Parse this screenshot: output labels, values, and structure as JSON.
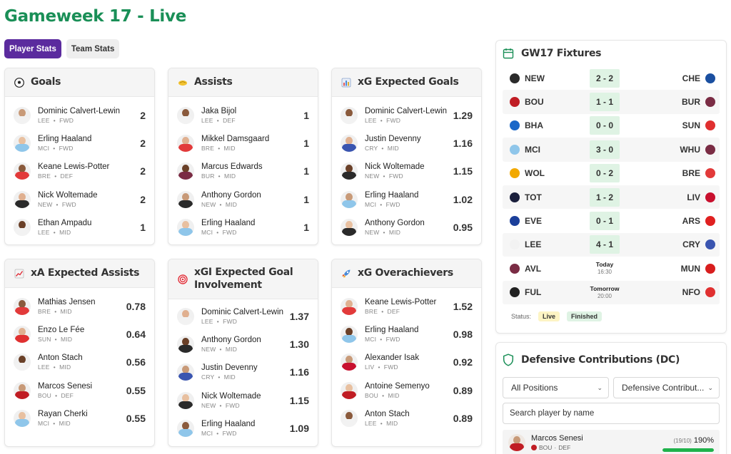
{
  "page": {
    "title": "Gameweek 17 - Live"
  },
  "tabs": [
    {
      "label": "Player Stats",
      "active": true
    },
    {
      "label": "Team Stats",
      "active": false
    }
  ],
  "cards": {
    "goals": {
      "title": "Goals",
      "icon": "soccer-ball-icon",
      "rows": [
        {
          "name": "Dominic Calvert-Lewin",
          "team": "LEE",
          "pos": "FWD",
          "value": "2"
        },
        {
          "name": "Erling Haaland",
          "team": "MCI",
          "pos": "FWD",
          "value": "2"
        },
        {
          "name": "Keane Lewis-Potter",
          "team": "BRE",
          "pos": "DEF",
          "value": "2"
        },
        {
          "name": "Nick Woltemade",
          "team": "NEW",
          "pos": "FWD",
          "value": "2"
        },
        {
          "name": "Ethan Ampadu",
          "team": "LEE",
          "pos": "MID",
          "value": "1"
        }
      ]
    },
    "assists": {
      "title": "Assists",
      "icon": "handshake-icon",
      "rows": [
        {
          "name": "Jaka Bijol",
          "team": "LEE",
          "pos": "DEF",
          "value": "1"
        },
        {
          "name": "Mikkel Damsgaard",
          "team": "BRE",
          "pos": "MID",
          "value": "1"
        },
        {
          "name": "Marcus Edwards",
          "team": "BUR",
          "pos": "MID",
          "value": "1"
        },
        {
          "name": "Anthony Gordon",
          "team": "NEW",
          "pos": "MID",
          "value": "1"
        },
        {
          "name": "Erling Haaland",
          "team": "MCI",
          "pos": "FWD",
          "value": "1"
        }
      ]
    },
    "xg": {
      "title": "xG Expected Goals",
      "icon": "bar-chart-icon",
      "rows": [
        {
          "name": "Dominic Calvert-Lewin",
          "team": "LEE",
          "pos": "FWD",
          "value": "1.29"
        },
        {
          "name": "Justin Devenny",
          "team": "CRY",
          "pos": "MID",
          "value": "1.16"
        },
        {
          "name": "Nick Woltemade",
          "team": "NEW",
          "pos": "FWD",
          "value": "1.15"
        },
        {
          "name": "Erling Haaland",
          "team": "MCI",
          "pos": "FWD",
          "value": "1.02"
        },
        {
          "name": "Anthony Gordon",
          "team": "NEW",
          "pos": "MID",
          "value": "0.95"
        }
      ]
    },
    "xa": {
      "title": "xA Expected Assists",
      "icon": "trend-up-icon",
      "rows": [
        {
          "name": "Mathias Jensen",
          "team": "BRE",
          "pos": "MID",
          "value": "0.78"
        },
        {
          "name": "Enzo Le Fée",
          "team": "SUN",
          "pos": "MID",
          "value": "0.64"
        },
        {
          "name": "Anton Stach",
          "team": "LEE",
          "pos": "MID",
          "value": "0.56"
        },
        {
          "name": "Marcos Senesi",
          "team": "BOU",
          "pos": "DEF",
          "value": "0.55"
        },
        {
          "name": "Rayan Cherki",
          "team": "MCI",
          "pos": "MID",
          "value": "0.55"
        }
      ]
    },
    "xgi": {
      "title": "xGI Expected Goal Involvement",
      "icon": "target-icon",
      "rows": [
        {
          "name": "Dominic Calvert-Lewin",
          "team": "LEE",
          "pos": "FWD",
          "value": "1.37"
        },
        {
          "name": "Anthony Gordon",
          "team": "NEW",
          "pos": "MID",
          "value": "1.30"
        },
        {
          "name": "Justin Devenny",
          "team": "CRY",
          "pos": "MID",
          "value": "1.16"
        },
        {
          "name": "Nick Woltemade",
          "team": "NEW",
          "pos": "FWD",
          "value": "1.15"
        },
        {
          "name": "Erling Haaland",
          "team": "MCI",
          "pos": "FWD",
          "value": "1.09"
        }
      ]
    },
    "overachievers": {
      "title": "xG Overachievers",
      "icon": "rocket-icon",
      "rows": [
        {
          "name": "Keane Lewis-Potter",
          "team": "BRE",
          "pos": "DEF",
          "value": "1.52"
        },
        {
          "name": "Erling Haaland",
          "team": "MCI",
          "pos": "FWD",
          "value": "0.98"
        },
        {
          "name": "Alexander Isak",
          "team": "LIV",
          "pos": "FWD",
          "value": "0.92"
        },
        {
          "name": "Antoine Semenyo",
          "team": "BOU",
          "pos": "MID",
          "value": "0.89"
        },
        {
          "name": "Anton Stach",
          "team": "LEE",
          "pos": "MID",
          "value": "0.89"
        }
      ]
    }
  },
  "fixtures": {
    "title": "GW17 Fixtures",
    "rows": [
      {
        "home": "NEW",
        "away": "CHE",
        "score": "2 - 2"
      },
      {
        "home": "BOU",
        "away": "BUR",
        "score": "1 - 1"
      },
      {
        "home": "BHA",
        "away": "SUN",
        "score": "0 - 0"
      },
      {
        "home": "MCI",
        "away": "WHU",
        "score": "3 - 0"
      },
      {
        "home": "WOL",
        "away": "BRE",
        "score": "0 - 2"
      },
      {
        "home": "TOT",
        "away": "LIV",
        "score": "1 - 2"
      },
      {
        "home": "EVE",
        "away": "ARS",
        "score": "0 - 1"
      },
      {
        "home": "LEE",
        "away": "CRY",
        "score": "4 - 1"
      },
      {
        "home": "AVL",
        "away": "MUN",
        "day": "Today",
        "time": "16:30"
      },
      {
        "home": "FUL",
        "away": "NFO",
        "day": "Tomorrow",
        "time": "20:00"
      }
    ],
    "status_label": "Status:",
    "live_label": "Live",
    "finished_label": "Finished"
  },
  "defensive": {
    "title": "Defensive Contributions (DC)",
    "position_select": "All Positions",
    "metric_select": "Defensive Contribut...",
    "search_placeholder": "Search player by name",
    "player": {
      "name": "Marcos Senesi",
      "team": "BOU",
      "pos": "DEF",
      "ratio": "(19/10)",
      "pct": "190%",
      "progress": 1.0
    }
  },
  "team_colors": {
    "LEE": "#f2f2f2",
    "MCI": "#8fc6ea",
    "BRE": "#e23a3a",
    "NEW": "#2a2a2a",
    "BUR": "#7a2c44",
    "CRY": "#3a55b0",
    "LIV": "#c8102e",
    "BOU": "#c01d24",
    "SUN": "#e03030",
    "CHE": "#1a4fa0",
    "BHA": "#1a67c8",
    "WHU": "#7a2c44",
    "WOL": "#f2a900",
    "TOT": "#1a1f3c",
    "EVE": "#1b3f9a",
    "ARS": "#e02020",
    "AVL": "#7a2c44",
    "MUN": "#d81e1e",
    "FUL": "#222222",
    "NFO": "#e03030"
  },
  "colors": {
    "title_green": "#1a8f57",
    "tab_purple": "#5b2b9e",
    "score_bg": "#dff3e4",
    "progress_green": "#1fb24b"
  }
}
